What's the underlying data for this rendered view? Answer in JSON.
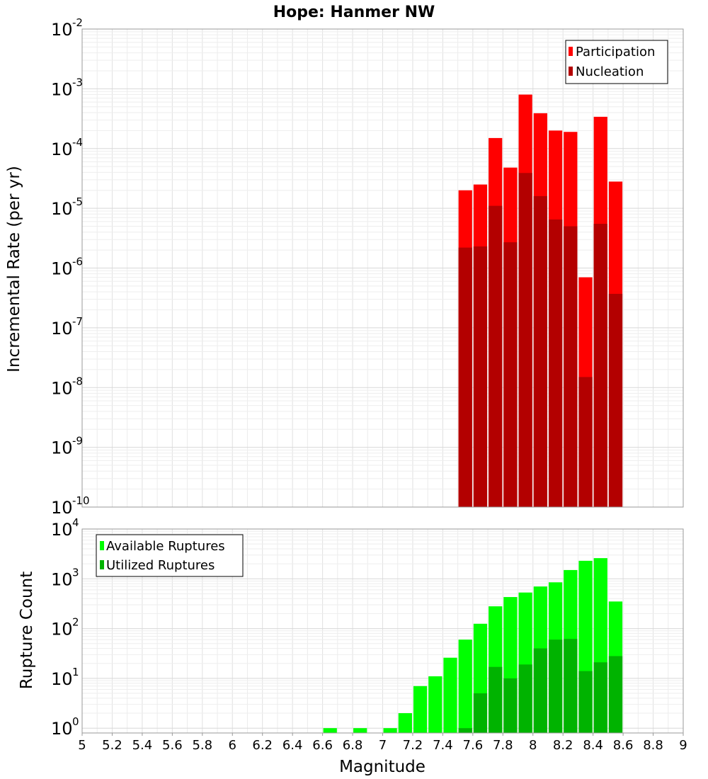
{
  "chart_data": [
    {
      "type": "bar",
      "title": "Hope: Hanmer NW",
      "xlabel": "Magnitude",
      "ylabel": "Incremental Rate (per yr)",
      "yscale": "log",
      "ylim": [
        1e-10,
        0.01
      ],
      "xlim": [
        5,
        9
      ],
      "legend_position": "top-right",
      "x": [
        7.55,
        7.65,
        7.75,
        7.85,
        7.95,
        8.05,
        8.15,
        8.25,
        8.35,
        8.45,
        8.55
      ],
      "series": [
        {
          "name": "Participation",
          "color": "#ff0000",
          "values": [
            2e-05,
            2.5e-05,
            0.00015,
            4.8e-05,
            0.0008,
            0.00039,
            0.0002,
            0.00019,
            7e-07,
            0.00034,
            2.8e-05
          ]
        },
        {
          "name": "Nucleation",
          "color": "#b30000",
          "values": [
            2.2e-06,
            2.3e-06,
            1.1e-05,
            2.7e-06,
            3.9e-05,
            1.6e-05,
            6.5e-06,
            5e-06,
            1.5e-08,
            5.5e-06,
            3.7e-07
          ]
        }
      ]
    },
    {
      "type": "bar",
      "title": "",
      "xlabel": "Magnitude",
      "ylabel": "Rupture Count",
      "yscale": "log",
      "ylim": [
        0.8,
        10000
      ],
      "xlim": [
        5,
        9
      ],
      "legend_position": "top-left",
      "x_ticks": [
        "5",
        "5.2",
        "5.4",
        "5.6",
        "5.8",
        "6",
        "6.2",
        "6.4",
        "6.6",
        "6.8",
        "7",
        "7.2",
        "7.4",
        "7.6",
        "7.8",
        "8",
        "8.2",
        "8.4",
        "8.6",
        "8.8",
        "9"
      ],
      "x": [
        6.65,
        6.85,
        7.05,
        7.15,
        7.25,
        7.35,
        7.45,
        7.55,
        7.65,
        7.75,
        7.85,
        7.95,
        8.05,
        8.15,
        8.25,
        8.35,
        8.45,
        8.55
      ],
      "series": [
        {
          "name": "Available Ruptures",
          "color": "#00ff00",
          "values": [
            1,
            1,
            1,
            2,
            7,
            11,
            26,
            60,
            125,
            280,
            430,
            530,
            700,
            850,
            1500,
            2300,
            2600,
            350
          ]
        },
        {
          "name": "Utilized Ruptures",
          "color": "#00b300",
          "values": [
            0,
            0,
            0,
            0,
            0,
            0,
            0,
            1,
            5,
            17,
            10,
            19,
            40,
            60,
            62,
            14,
            21,
            28
          ]
        }
      ]
    }
  ]
}
